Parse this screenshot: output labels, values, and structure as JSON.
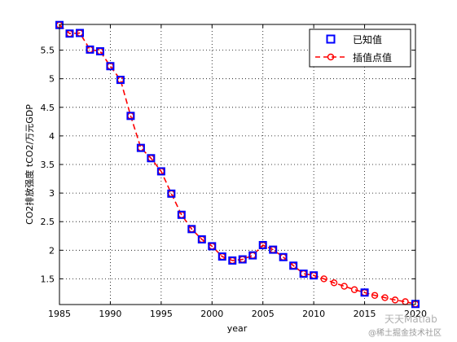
{
  "chart_data": {
    "type": "line",
    "xlabel": "year",
    "ylabel": "CO2排放强度 tCO2/万元GDP",
    "xlim": [
      1985,
      2020
    ],
    "ylim": [
      1.05,
      5.95
    ],
    "xticks": [
      1985,
      1990,
      1995,
      2000,
      2005,
      2010,
      2015,
      2020
    ],
    "yticks": [
      1.5,
      2,
      2.5,
      3,
      3.5,
      4,
      4.5,
      5,
      5.5
    ],
    "grid": true,
    "legend_position": "top-right",
    "series": [
      {
        "name": "已知值",
        "style": "square-markers",
        "color": "#0000ff",
        "x": [
          1985,
          1986,
          1987,
          1988,
          1989,
          1990,
          1991,
          1992,
          1993,
          1994,
          1995,
          1996,
          1997,
          1998,
          1999,
          2000,
          2001,
          2002,
          2003,
          2004,
          2005,
          2006,
          2007,
          2008,
          2009,
          2010,
          2015,
          2020
        ],
        "y": [
          5.94,
          5.79,
          5.8,
          5.51,
          5.48,
          5.22,
          4.98,
          4.35,
          3.79,
          3.61,
          3.38,
          2.99,
          2.62,
          2.37,
          2.19,
          2.07,
          1.89,
          1.82,
          1.84,
          1.91,
          2.09,
          2.01,
          1.88,
          1.73,
          1.59,
          1.56,
          1.26,
          1.06
        ]
      },
      {
        "name": "插值点值",
        "style": "dashed-line-circles",
        "color": "#ff0000",
        "x": [
          1985,
          1986,
          1987,
          1988,
          1989,
          1990,
          1991,
          1992,
          1993,
          1994,
          1995,
          1996,
          1997,
          1998,
          1999,
          2000,
          2001,
          2002,
          2003,
          2004,
          2005,
          2006,
          2007,
          2008,
          2009,
          2010,
          2011,
          2012,
          2013,
          2014,
          2015,
          2016,
          2017,
          2018,
          2019,
          2020
        ],
        "y": [
          5.94,
          5.79,
          5.8,
          5.51,
          5.48,
          5.22,
          4.98,
          4.35,
          3.79,
          3.61,
          3.38,
          2.99,
          2.62,
          2.37,
          2.19,
          2.07,
          1.89,
          1.82,
          1.84,
          1.91,
          2.09,
          2.01,
          1.88,
          1.73,
          1.59,
          1.56,
          1.5,
          1.43,
          1.37,
          1.31,
          1.26,
          1.21,
          1.17,
          1.13,
          1.1,
          1.06
        ]
      }
    ]
  },
  "watermark": {
    "brand": "天天Matlab",
    "source": "@稀土掘金技术社区"
  }
}
